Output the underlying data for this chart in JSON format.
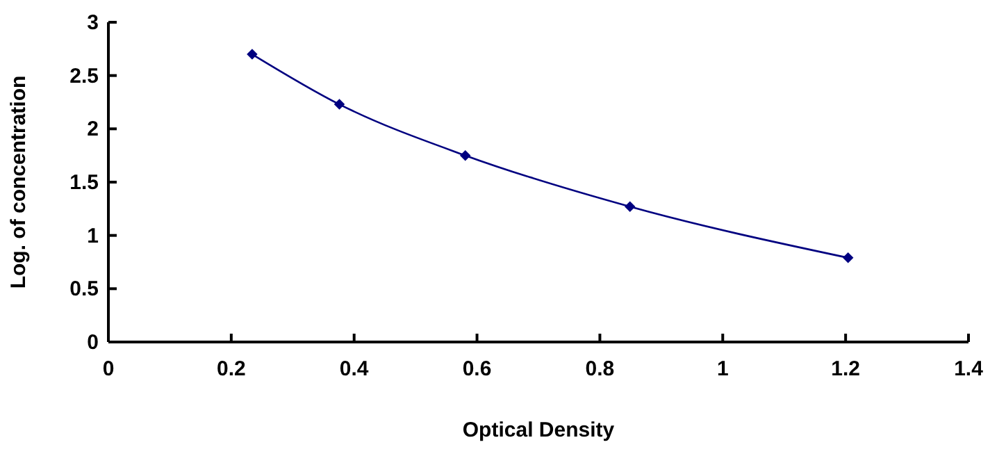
{
  "chart_data": {
    "type": "line",
    "xlabel": "Optical Density",
    "ylabel": "Log. of concentration",
    "x": [
      0.234,
      0.376,
      0.581,
      0.849,
      1.204
    ],
    "series": [
      {
        "color": "#000080",
        "values": [
          2.7,
          2.23,
          1.75,
          1.27,
          0.79
        ]
      }
    ],
    "xlim": [
      0,
      1.4
    ],
    "xticks": [
      0,
      0.2,
      0.4,
      0.6,
      0.8,
      1,
      1.2,
      1.4
    ],
    "ylim": [
      0,
      3
    ],
    "yticks": [
      0,
      0.5,
      1,
      1.5,
      2,
      2.5,
      3
    ],
    "grid": false,
    "marker": "diamond",
    "line_style": "solid"
  }
}
